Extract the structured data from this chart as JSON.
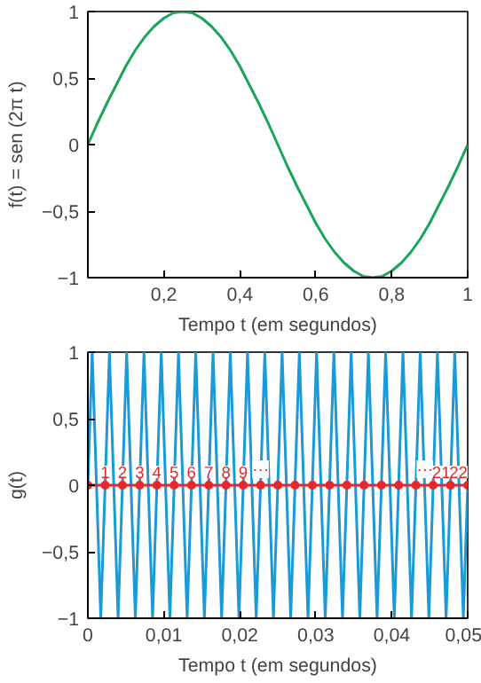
{
  "chart_data": [
    {
      "type": "line",
      "xlabel": "Tempo t (em segundos)",
      "ylabel": "f(t) = sen (2π t)",
      "xlim": [
        0,
        1
      ],
      "ylim": [
        -1,
        1
      ],
      "xticks": [
        {
          "value": 0.2,
          "label": "0,2"
        },
        {
          "value": 0.4,
          "label": "0,4"
        },
        {
          "value": 0.6,
          "label": "0,6"
        },
        {
          "value": 0.8,
          "label": "0,8"
        },
        {
          "value": 1,
          "label": "1"
        }
      ],
      "yticks": [
        {
          "value": -1,
          "label": "−1"
        },
        {
          "value": -0.5,
          "label": "−0,5"
        },
        0,
        {
          "value": 0.5,
          "label": "0,5"
        },
        1
      ],
      "grid": false,
      "marker": "none",
      "line_style": "solid",
      "series": [
        {
          "color": "#1aa55a",
          "x": [
            0,
            0.025,
            0.05,
            0.075,
            0.1,
            0.125,
            0.15,
            0.175,
            0.2,
            0.225,
            0.25,
            0.275,
            0.3,
            0.325,
            0.35,
            0.375,
            0.4,
            0.425,
            0.45,
            0.475,
            0.5,
            0.525,
            0.55,
            0.575,
            0.6,
            0.625,
            0.65,
            0.675,
            0.7,
            0.725,
            0.75,
            0.775,
            0.8,
            0.825,
            0.85,
            0.875,
            0.9,
            0.925,
            0.95,
            0.975,
            1
          ],
          "values": [
            0,
            0.16,
            0.31,
            0.45,
            0.59,
            0.71,
            0.81,
            0.89,
            0.95,
            0.99,
            1,
            0.99,
            0.95,
            0.89,
            0.81,
            0.71,
            0.59,
            0.45,
            0.31,
            0.16,
            0,
            -0.16,
            -0.31,
            -0.45,
            -0.59,
            -0.71,
            -0.81,
            -0.89,
            -0.95,
            -0.99,
            -1,
            -0.99,
            -0.95,
            -0.89,
            -0.81,
            -0.71,
            -0.59,
            -0.45,
            -0.31,
            -0.16,
            0
          ]
        }
      ]
    },
    {
      "type": "line",
      "xlabel": "Tempo t (em segundos)",
      "ylabel": "g(t)",
      "xlim": [
        0,
        0.05
      ],
      "ylim": [
        -1,
        1
      ],
      "xticks": [
        0,
        {
          "value": 0.01,
          "label": "0,01"
        },
        {
          "value": 0.02,
          "label": "0,02"
        },
        {
          "value": 0.03,
          "label": "0,03"
        },
        {
          "value": 0.04,
          "label": "0,04"
        },
        {
          "value": 0.05,
          "label": "0,05"
        }
      ],
      "yticks": [
        {
          "value": -1,
          "label": "−1"
        },
        {
          "value": -0.5,
          "label": "−0,5"
        },
        0,
        {
          "value": 0.5,
          "label": "0,5"
        },
        1
      ],
      "grid": false,
      "line_style": "solid",
      "series": [
        {
          "color": "#1a9ad6",
          "marker": "none",
          "x": [
            0,
            0.00057,
            0.00114,
            0.0017,
            0.00227,
            0.00284,
            0.00341,
            0.00398,
            0.00455,
            0.00511,
            0.00568,
            0.00625,
            0.00682,
            0.00739,
            0.00795,
            0.00852,
            0.00909,
            0.00966,
            0.01023,
            0.0108,
            0.01136,
            0.01193,
            0.0125,
            0.01307,
            0.01364,
            0.0142,
            0.01477,
            0.01534,
            0.01591,
            0.01648,
            0.01705,
            0.01761,
            0.01818,
            0.01875,
            0.01932,
            0.01989,
            0.02045,
            0.02102,
            0.02159,
            0.02216,
            0.02273,
            0.0233,
            0.02386,
            0.02443,
            0.025,
            0.02557,
            0.02614,
            0.0267,
            0.02727,
            0.02784,
            0.02841,
            0.02898,
            0.02955,
            0.03011,
            0.03068,
            0.03125,
            0.03182,
            0.03239,
            0.03295,
            0.03352,
            0.03409,
            0.03466,
            0.03523,
            0.0358,
            0.03636,
            0.03693,
            0.0375,
            0.03807,
            0.03864,
            0.0392,
            0.03977,
            0.04034,
            0.04091,
            0.04148,
            0.04205,
            0.04261,
            0.04318,
            0.04375,
            0.04432,
            0.04489,
            0.04545,
            0.04602,
            0.04659,
            0.04716,
            0.04773,
            0.0483,
            0.04886,
            0.04943,
            0.05
          ],
          "values": [
            0,
            1,
            0,
            -1,
            0,
            1,
            0,
            -1,
            0,
            1,
            0,
            -1,
            0,
            1,
            0,
            -1,
            0,
            1,
            0,
            -1,
            0,
            1,
            0,
            -1,
            0,
            1,
            0,
            -1,
            0,
            1,
            0,
            -1,
            0,
            1,
            0,
            -1,
            0,
            1,
            0,
            -1,
            0,
            1,
            0,
            -1,
            0,
            1,
            0,
            -1,
            0,
            1,
            0,
            -1,
            0,
            1,
            0,
            -1,
            0,
            1,
            0,
            -1,
            0,
            1,
            0,
            -1,
            0,
            1,
            0,
            -1,
            0,
            1,
            0,
            -1,
            0,
            1,
            0,
            -1,
            0,
            1,
            0,
            -1,
            0,
            1,
            0,
            -1,
            0,
            1,
            0,
            -1,
            0
          ]
        },
        {
          "color": "#e8262b",
          "marker": "circle",
          "x": [
            0,
            0.00227,
            0.00455,
            0.00682,
            0.00909,
            0.01136,
            0.01364,
            0.01591,
            0.01818,
            0.02045,
            0.02273,
            0.025,
            0.02727,
            0.02955,
            0.03182,
            0.03409,
            0.03636,
            0.03864,
            0.04091,
            0.04318,
            0.04545,
            0.04773,
            0.05
          ],
          "values": [
            0,
            0,
            0,
            0,
            0,
            0,
            0,
            0,
            0,
            0,
            0,
            0,
            0,
            0,
            0,
            0,
            0,
            0,
            0,
            0,
            0,
            0,
            0
          ]
        }
      ],
      "annotations": [
        {
          "text": "1",
          "x": 0.00227,
          "y": 0
        },
        {
          "text": "2",
          "x": 0.00455,
          "y": 0
        },
        {
          "text": "3",
          "x": 0.00682,
          "y": 0
        },
        {
          "text": "4",
          "x": 0.00909,
          "y": 0
        },
        {
          "text": "5",
          "x": 0.01136,
          "y": 0
        },
        {
          "text": "6",
          "x": 0.01364,
          "y": 0
        },
        {
          "text": "7",
          "x": 0.01591,
          "y": 0
        },
        {
          "text": "8",
          "x": 0.01818,
          "y": 0
        },
        {
          "text": "9",
          "x": 0.02045,
          "y": 0
        },
        {
          "text": "···",
          "x": 0.02273,
          "y": 0
        },
        {
          "text": "···",
          "x": 0.04545,
          "y": 0
        },
        {
          "text": "21",
          "x": 0.04773,
          "y": 0
        },
        {
          "text": "22",
          "x": 0.05,
          "y": 0
        }
      ]
    }
  ]
}
